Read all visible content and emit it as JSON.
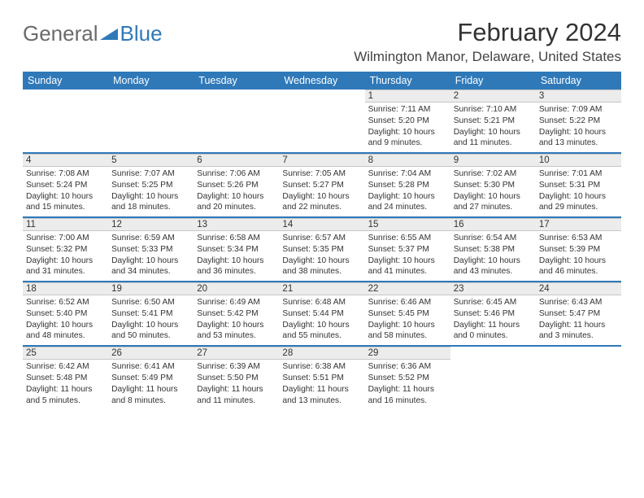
{
  "logo": {
    "part1": "General",
    "part2": "Blue",
    "icon_color": "#2f79b9"
  },
  "title": "February 2024",
  "location": "Wilmington Manor, Delaware, United States",
  "colors": {
    "header_bar": "#2f79b9",
    "daynum_bg": "#ececec",
    "daynum_border": "#c7c7c7",
    "text": "#333333",
    "row_divider": "#2f79b9"
  },
  "typography": {
    "title_fontsize": 31,
    "location_fontsize": 17,
    "weekday_fontsize": 12.5,
    "daynum_fontsize": 11.5,
    "info_fontsize": 10.2
  },
  "weekdays": [
    "Sunday",
    "Monday",
    "Tuesday",
    "Wednesday",
    "Thursday",
    "Friday",
    "Saturday"
  ],
  "weeks": [
    [
      {
        "blank": true
      },
      {
        "blank": true
      },
      {
        "blank": true
      },
      {
        "blank": true
      },
      {
        "day": "1",
        "sunrise": "7:11 AM",
        "sunset": "5:20 PM",
        "daylight_h": "10",
        "daylight_m": "9"
      },
      {
        "day": "2",
        "sunrise": "7:10 AM",
        "sunset": "5:21 PM",
        "daylight_h": "10",
        "daylight_m": "11"
      },
      {
        "day": "3",
        "sunrise": "7:09 AM",
        "sunset": "5:22 PM",
        "daylight_h": "10",
        "daylight_m": "13"
      }
    ],
    [
      {
        "day": "4",
        "sunrise": "7:08 AM",
        "sunset": "5:24 PM",
        "daylight_h": "10",
        "daylight_m": "15"
      },
      {
        "day": "5",
        "sunrise": "7:07 AM",
        "sunset": "5:25 PM",
        "daylight_h": "10",
        "daylight_m": "18"
      },
      {
        "day": "6",
        "sunrise": "7:06 AM",
        "sunset": "5:26 PM",
        "daylight_h": "10",
        "daylight_m": "20"
      },
      {
        "day": "7",
        "sunrise": "7:05 AM",
        "sunset": "5:27 PM",
        "daylight_h": "10",
        "daylight_m": "22"
      },
      {
        "day": "8",
        "sunrise": "7:04 AM",
        "sunset": "5:28 PM",
        "daylight_h": "10",
        "daylight_m": "24"
      },
      {
        "day": "9",
        "sunrise": "7:02 AM",
        "sunset": "5:30 PM",
        "daylight_h": "10",
        "daylight_m": "27"
      },
      {
        "day": "10",
        "sunrise": "7:01 AM",
        "sunset": "5:31 PM",
        "daylight_h": "10",
        "daylight_m": "29"
      }
    ],
    [
      {
        "day": "11",
        "sunrise": "7:00 AM",
        "sunset": "5:32 PM",
        "daylight_h": "10",
        "daylight_m": "31"
      },
      {
        "day": "12",
        "sunrise": "6:59 AM",
        "sunset": "5:33 PM",
        "daylight_h": "10",
        "daylight_m": "34"
      },
      {
        "day": "13",
        "sunrise": "6:58 AM",
        "sunset": "5:34 PM",
        "daylight_h": "10",
        "daylight_m": "36"
      },
      {
        "day": "14",
        "sunrise": "6:57 AM",
        "sunset": "5:35 PM",
        "daylight_h": "10",
        "daylight_m": "38"
      },
      {
        "day": "15",
        "sunrise": "6:55 AM",
        "sunset": "5:37 PM",
        "daylight_h": "10",
        "daylight_m": "41"
      },
      {
        "day": "16",
        "sunrise": "6:54 AM",
        "sunset": "5:38 PM",
        "daylight_h": "10",
        "daylight_m": "43"
      },
      {
        "day": "17",
        "sunrise": "6:53 AM",
        "sunset": "5:39 PM",
        "daylight_h": "10",
        "daylight_m": "46"
      }
    ],
    [
      {
        "day": "18",
        "sunrise": "6:52 AM",
        "sunset": "5:40 PM",
        "daylight_h": "10",
        "daylight_m": "48"
      },
      {
        "day": "19",
        "sunrise": "6:50 AM",
        "sunset": "5:41 PM",
        "daylight_h": "10",
        "daylight_m": "50"
      },
      {
        "day": "20",
        "sunrise": "6:49 AM",
        "sunset": "5:42 PM",
        "daylight_h": "10",
        "daylight_m": "53"
      },
      {
        "day": "21",
        "sunrise": "6:48 AM",
        "sunset": "5:44 PM",
        "daylight_h": "10",
        "daylight_m": "55"
      },
      {
        "day": "22",
        "sunrise": "6:46 AM",
        "sunset": "5:45 PM",
        "daylight_h": "10",
        "daylight_m": "58"
      },
      {
        "day": "23",
        "sunrise": "6:45 AM",
        "sunset": "5:46 PM",
        "daylight_h": "11",
        "daylight_m": "0"
      },
      {
        "day": "24",
        "sunrise": "6:43 AM",
        "sunset": "5:47 PM",
        "daylight_h": "11",
        "daylight_m": "3"
      }
    ],
    [
      {
        "day": "25",
        "sunrise": "6:42 AM",
        "sunset": "5:48 PM",
        "daylight_h": "11",
        "daylight_m": "5"
      },
      {
        "day": "26",
        "sunrise": "6:41 AM",
        "sunset": "5:49 PM",
        "daylight_h": "11",
        "daylight_m": "8"
      },
      {
        "day": "27",
        "sunrise": "6:39 AM",
        "sunset": "5:50 PM",
        "daylight_h": "11",
        "daylight_m": "11"
      },
      {
        "day": "28",
        "sunrise": "6:38 AM",
        "sunset": "5:51 PM",
        "daylight_h": "11",
        "daylight_m": "13"
      },
      {
        "day": "29",
        "sunrise": "6:36 AM",
        "sunset": "5:52 PM",
        "daylight_h": "11",
        "daylight_m": "16"
      },
      {
        "blank": true
      },
      {
        "blank": true
      }
    ]
  ]
}
